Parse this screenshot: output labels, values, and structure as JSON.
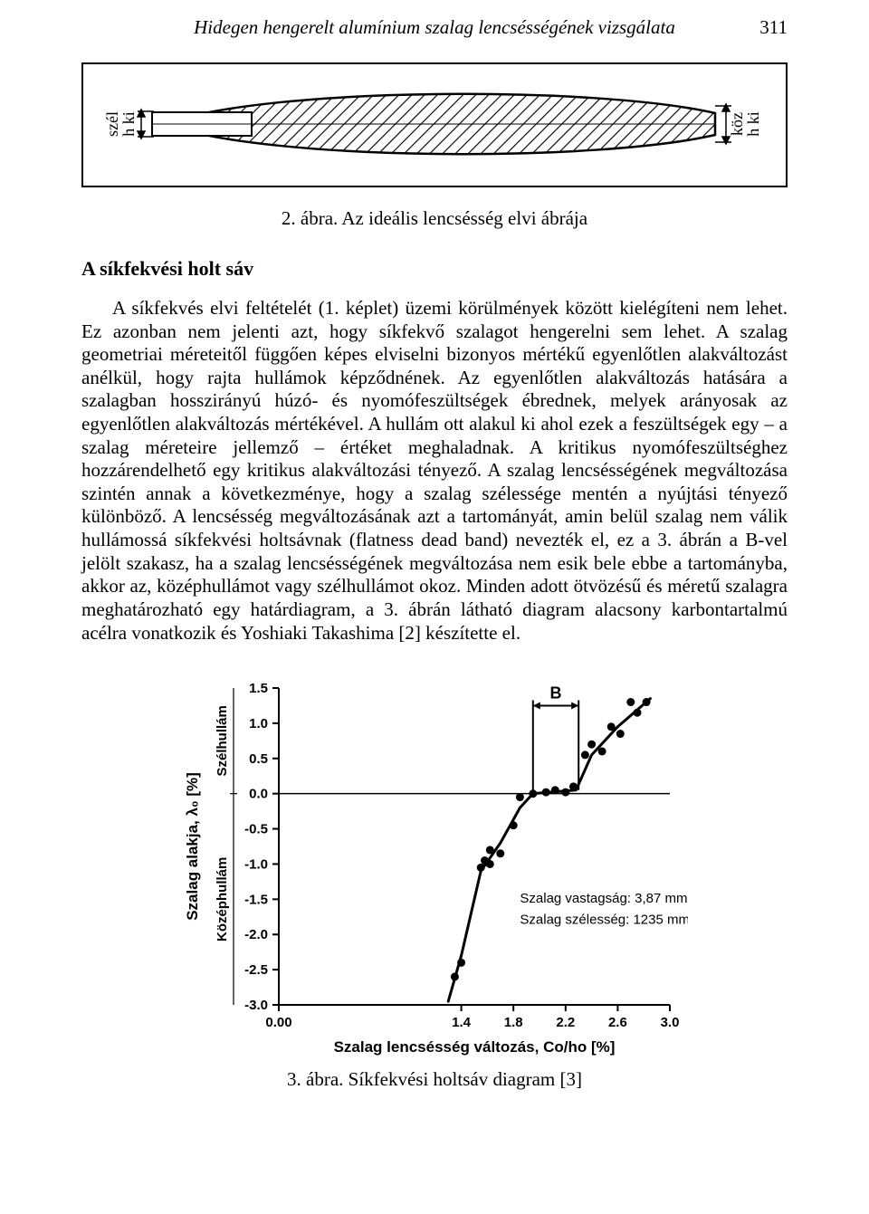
{
  "page": {
    "running_title": "Hidegen hengerelt alumínium szalag lencsésségének vizsgálata",
    "page_number": "311"
  },
  "figure1": {
    "caption": "2. ábra. Az ideális lencsésség elvi ábrája",
    "left_label_top": "szél",
    "left_label_bottom": "h ki",
    "right_label_top": "köz",
    "right_label_bottom": "h ki",
    "border_color": "#000000",
    "hatch_color": "#000000",
    "background_color": "#ffffff"
  },
  "section": {
    "title": "A síkfekvési holt sáv",
    "paragraph": "A síkfekvés elvi feltételét (1. képlet) üzemi körülmények között kielégíteni nem lehet. Ez azonban nem jelenti azt, hogy síkfekvő szalagot hengerelni sem lehet. A szalag geometriai méreteitől függően képes elviselni bizonyos mértékű egyenlőtlen alakváltozást anélkül, hogy rajta hullámok képződnének. Az egyenlőtlen alakváltozás hatására a szalagban hosszirányú húzó- és nyomófeszültségek ébrednek, melyek arányosak az egyenlőtlen alakváltozás mértékével. A hullám ott alakul ki ahol ezek a feszültségek egy – a szalag méreteire jellemző – értéket meghaladnak. A kritikus nyomófeszültséghez hozzárendelhető egy kritikus alakváltozási tényező. A szalag lencsésségének megváltozása szintén annak a következménye, hogy a szalag szélessége mentén a nyújtási tényező különböző. A lencsésség megváltozásának azt a tartományát, amin belül szalag nem válik hullámossá síkfekvési holtsávnak (flatness dead band) nevezték el, ez a 3. ábrán a B-vel jelölt szakasz, ha a szalag lencsésségének megváltozása nem esik bele ebbe a tartományba, akkor az, középhullámot vagy szélhullámot okoz. Minden adott ötvözésű és méretű szalagra meghatározható egy határdiagram, a 3. ábrán látható diagram alacsony karbontartalmú acélra vonatkozik és Yoshiaki Takashima [2] készítette el."
  },
  "figure3": {
    "caption": "3. ábra. Síkfekvési holtsáv diagram [3]",
    "type": "scatter+curve",
    "xlabel": "Szalag lencsésség változás, Co/ho [%]",
    "ylabel": "Szalag alakja, λ₀ [%]",
    "x_ticks": [
      "0.00",
      "1.4",
      "1.8",
      "2.2",
      "2.6",
      "3.0"
    ],
    "x_tick_vals": [
      0.0,
      1.4,
      1.8,
      2.2,
      2.6,
      3.0
    ],
    "y_ticks": [
      "1.5",
      "1.0",
      "0.5",
      "0.0",
      "-0.5",
      "-1.0",
      "-1.5",
      "-2.0",
      "-2.5",
      "-3.0"
    ],
    "y_tick_vals": [
      1.5,
      1.0,
      0.5,
      0.0,
      -0.5,
      -1.0,
      -1.5,
      -2.0,
      -2.5,
      -3.0
    ],
    "xlim": [
      0.0,
      3.0
    ],
    "ylim": [
      -3.0,
      1.5
    ],
    "region_upper_label": "Szélhullám",
    "region_lower_label": "Középhullám",
    "annotation_B": "B",
    "B_x_from": 1.95,
    "B_x_to": 2.3,
    "B_y": 1.25,
    "legend_line1": "Szalag vastagság: 3,87 mm",
    "legend_line2": "Szalag szélesség: 1235 mm",
    "points": [
      [
        1.35,
        -2.6
      ],
      [
        1.4,
        -2.4
      ],
      [
        1.55,
        -1.05
      ],
      [
        1.58,
        -0.95
      ],
      [
        1.62,
        -1.0
      ],
      [
        1.62,
        -0.8
      ],
      [
        1.7,
        -0.85
      ],
      [
        1.8,
        -0.45
      ],
      [
        1.85,
        -0.05
      ],
      [
        1.95,
        0.0
      ],
      [
        2.05,
        0.02
      ],
      [
        2.12,
        0.05
      ],
      [
        2.2,
        0.02
      ],
      [
        2.26,
        0.1
      ],
      [
        2.35,
        0.55
      ],
      [
        2.4,
        0.7
      ],
      [
        2.48,
        0.6
      ],
      [
        2.55,
        0.95
      ],
      [
        2.62,
        0.85
      ],
      [
        2.7,
        1.3
      ],
      [
        2.75,
        1.15
      ],
      [
        2.82,
        1.3
      ]
    ],
    "curve": [
      [
        1.3,
        -2.95
      ],
      [
        1.4,
        -2.3
      ],
      [
        1.55,
        -1.1
      ],
      [
        1.7,
        -0.7
      ],
      [
        1.85,
        -0.2
      ],
      [
        1.95,
        0.0
      ],
      [
        2.28,
        0.05
      ],
      [
        2.4,
        0.55
      ],
      [
        2.6,
        0.95
      ],
      [
        2.85,
        1.35
      ]
    ],
    "marker_color": "#000000",
    "marker_radius": 4.5,
    "curve_width": 3,
    "axis_color": "#000000",
    "tick_fontsize": 15,
    "label_fontsize": 17,
    "label_fontweight": "bold",
    "background_color": "#ffffff"
  }
}
